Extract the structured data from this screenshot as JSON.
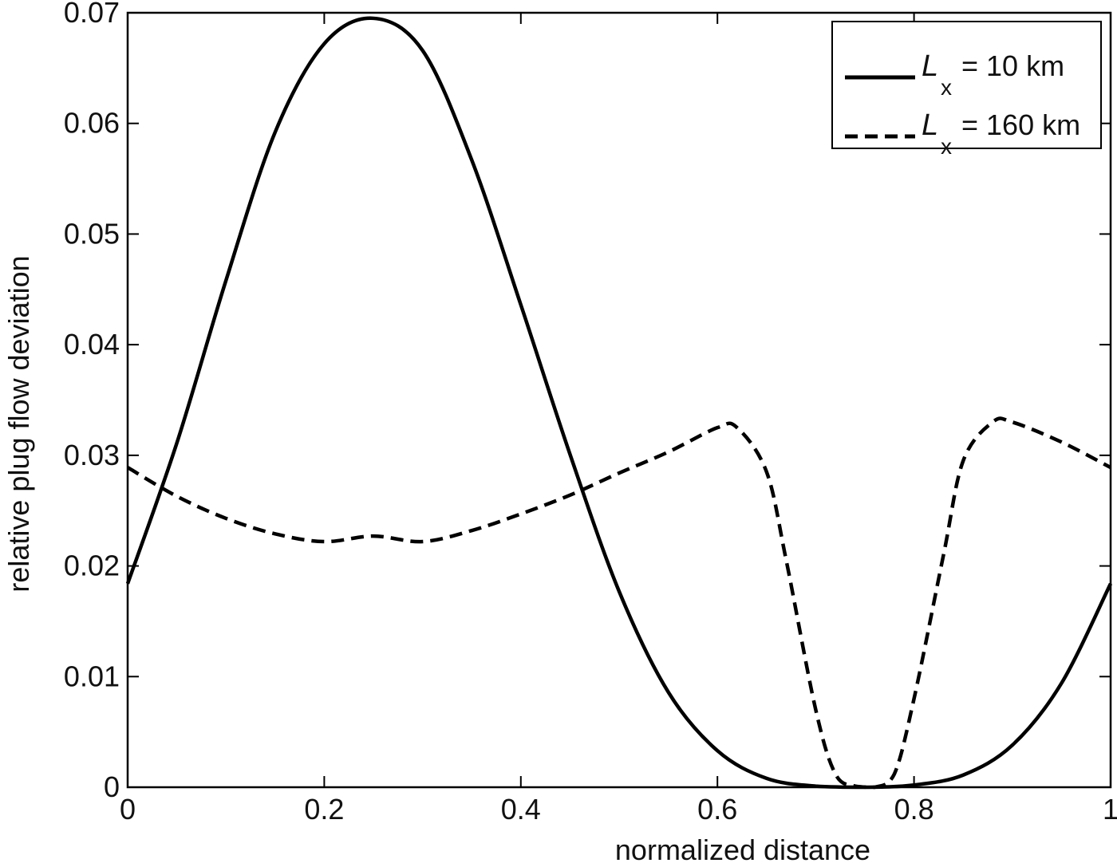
{
  "chart_data": {
    "type": "line",
    "title": "",
    "xlabel": "normalized distance",
    "ylabel": "relative plug flow deviation",
    "xlim": [
      0,
      1
    ],
    "ylim": [
      0,
      0.07
    ],
    "xticks": [
      0,
      0.2,
      0.4,
      0.6,
      0.8,
      1
    ],
    "xtick_labels": [
      "0",
      "0.2",
      "0.4",
      "0.6",
      "0.8",
      "1"
    ],
    "yticks": [
      0,
      0.01,
      0.02,
      0.03,
      0.04,
      0.05,
      0.06,
      0.07
    ],
    "ytick_labels": [
      "0",
      "0.01",
      "0.02",
      "0.03",
      "0.04",
      "0.05",
      "0.06",
      "0.07"
    ],
    "grid": false,
    "legend_position": "top-right",
    "series": [
      {
        "name": "L_x = 10 km",
        "legend_symbol": "L",
        "legend_subscript": "x",
        "legend_value": "= 10 km",
        "style": "solid",
        "color": "#000000",
        "x": [
          0,
          0.05,
          0.1,
          0.15,
          0.2,
          0.25,
          0.3,
          0.35,
          0.4,
          0.45,
          0.5,
          0.55,
          0.6,
          0.65,
          0.7,
          0.75,
          0.8,
          0.85,
          0.9,
          0.95,
          1.0
        ],
        "y": [
          0.0184,
          0.0311,
          0.0458,
          0.0592,
          0.0672,
          0.0695,
          0.0666,
          0.0567,
          0.0436,
          0.0301,
          0.0177,
          0.0086,
          0.0033,
          0.0008,
          0.0001,
          0.0,
          0.0002,
          0.0011,
          0.0038,
          0.0094,
          0.0184
        ]
      },
      {
        "name": "L_x = 160 km",
        "legend_symbol": "L",
        "legend_subscript": "x",
        "legend_value": "= 160 km",
        "style": "dashed",
        "color": "#000000",
        "x": [
          0,
          0.05,
          0.1,
          0.15,
          0.2,
          0.25,
          0.3,
          0.35,
          0.4,
          0.45,
          0.5,
          0.55,
          0.6,
          0.62,
          0.65,
          0.67,
          0.7,
          0.72,
          0.74,
          0.76,
          0.78,
          0.8,
          0.83,
          0.85,
          0.88,
          0.9,
          0.95,
          1.0
        ],
        "y": [
          0.0289,
          0.0263,
          0.0243,
          0.0229,
          0.0222,
          0.0227,
          0.0222,
          0.0232,
          0.0247,
          0.0264,
          0.0284,
          0.0303,
          0.0325,
          0.0325,
          0.0285,
          0.0205,
          0.007,
          0.0012,
          0.0001,
          0.0,
          0.0012,
          0.008,
          0.021,
          0.0295,
          0.033,
          0.033,
          0.0312,
          0.0289
        ]
      }
    ]
  }
}
